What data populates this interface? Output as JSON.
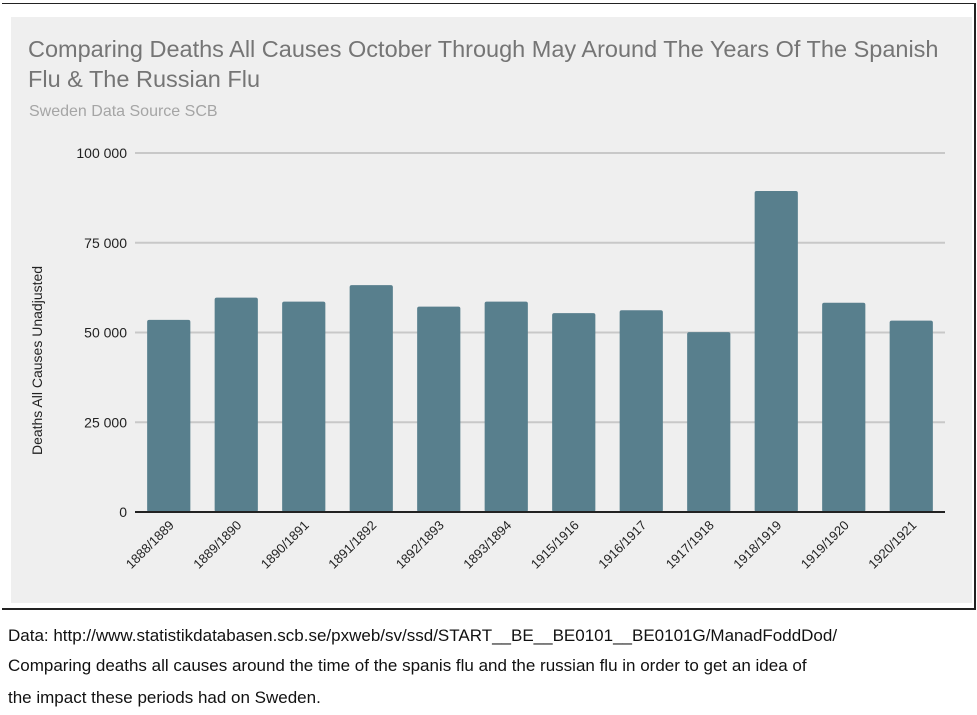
{
  "chart_data": {
    "type": "bar",
    "title": "Comparing Deaths All Causes October Through May Around The Years Of The Spanish Flu & The Russian Flu",
    "subtitle": "Sweden Data Source SCB",
    "xlabel": "",
    "ylabel": "Deaths All Causes Unadjusted",
    "ylim": [
      0,
      100000
    ],
    "yticks": [
      0,
      25000,
      50000,
      75000,
      100000
    ],
    "ytick_labels": [
      "0",
      "25 000",
      "50 000",
      "75 000",
      "100 000"
    ],
    "grid": true,
    "categories": [
      "1888/1889",
      "1889/1890",
      "1890/1891",
      "1891/1892",
      "1892/1893",
      "1893/1894",
      "1915/1916",
      "1916/1917",
      "1917/1918",
      "1918/1919",
      "1919/1920",
      "1920/1921"
    ],
    "values": [
      53500,
      59700,
      58600,
      63200,
      57200,
      58600,
      55400,
      56200,
      50100,
      89400,
      58300,
      53300
    ],
    "bar_color": "#587f8d"
  },
  "caption": {
    "line1": "Data: http://www.statistikdatabasen.scb.se/pxweb/sv/ssd/START__BE__BE0101__BE0101G/ManadFoddDod/",
    "line2": "Comparing deaths all causes around the time of the spanis flu and the russian flu in order to get an idea of",
    "line3": "the impact these periods had on Sweden."
  },
  "side_marker": "⋮"
}
